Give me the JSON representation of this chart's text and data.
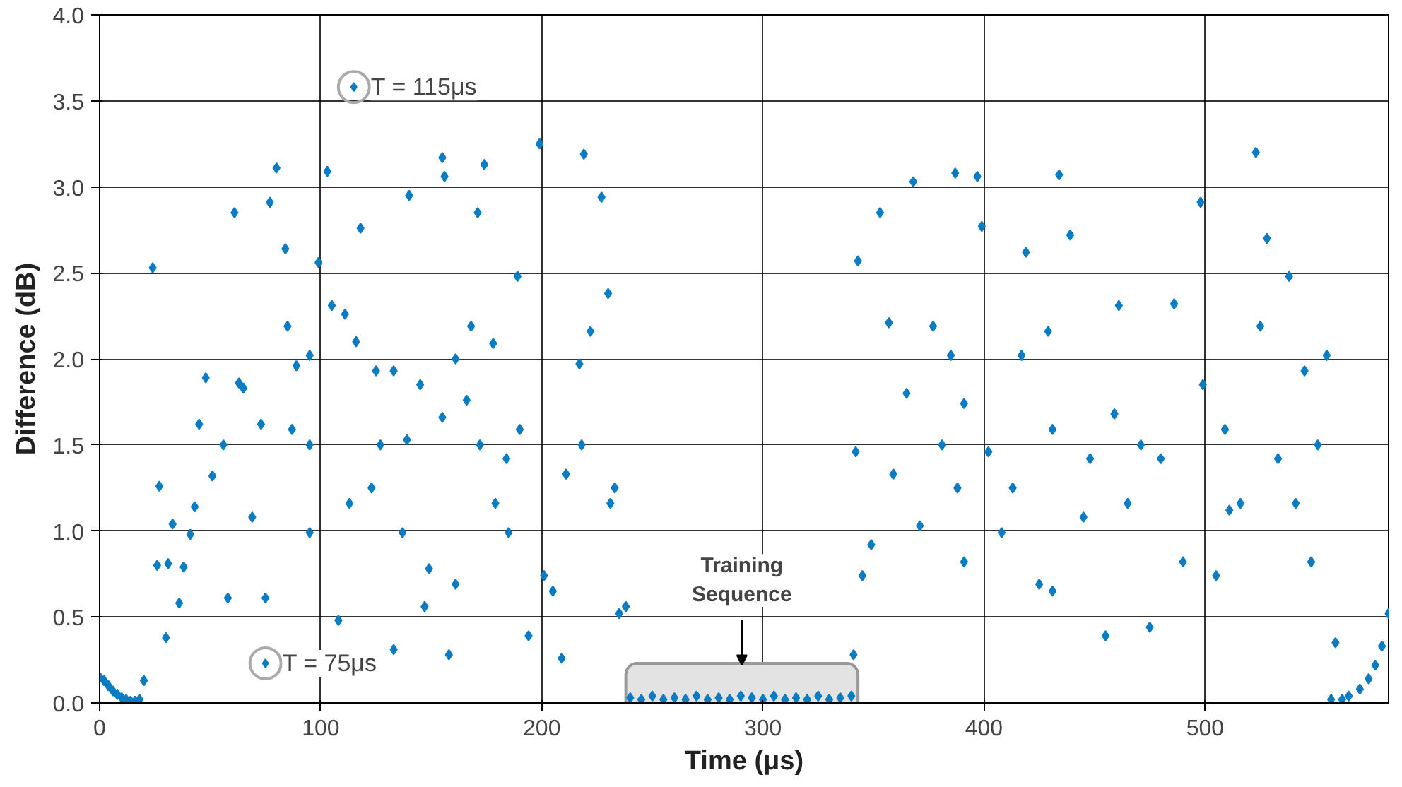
{
  "chart_data": {
    "type": "scatter",
    "xlabel": "Time (μs)",
    "ylabel": "Difference (dB)",
    "xlim": [
      0,
      583
    ],
    "ylim": [
      0,
      4
    ],
    "xticks": [
      0,
      100,
      200,
      300,
      400,
      500
    ],
    "yticks": [
      {
        "value": 0,
        "label": "0.0"
      },
      0.5,
      {
        "value": 1,
        "label": "1.0"
      },
      1.5,
      {
        "value": 2,
        "label": "2.0"
      },
      2.5,
      {
        "value": 3,
        "label": "3.0"
      },
      3.5,
      {
        "value": 4,
        "label": "4.0"
      }
    ],
    "grid": true,
    "marker": "diamond",
    "annotations": [
      {
        "text": "T = 115μs",
        "x": 115,
        "y": 3.58
      },
      {
        "text": "T = 75μs",
        "x": 75,
        "y": 0.23
      }
    ],
    "bands": [
      {
        "axis": "x",
        "from": 238,
        "to": 343,
        "label": "Training Sequence",
        "color": "#e3e3e3"
      }
    ],
    "series": [
      {
        "color": "#0a7cc4",
        "x": [
          0,
          2,
          4,
          6,
          8,
          10,
          12,
          14,
          16,
          18,
          20,
          24,
          26,
          27,
          30,
          31,
          33,
          36,
          38,
          41,
          43,
          45,
          48,
          51,
          56,
          58,
          61,
          63,
          65,
          69,
          73,
          75,
          77,
          80,
          84,
          85,
          87,
          89,
          95,
          95,
          95,
          99,
          103,
          105,
          108,
          111,
          113,
          116,
          118,
          123,
          125,
          127,
          133,
          133,
          137,
          139,
          140,
          145,
          147,
          149,
          155,
          155,
          156,
          158,
          161,
          161,
          166,
          168,
          171,
          172,
          174,
          178,
          179,
          184,
          185,
          189,
          190,
          194,
          199,
          201,
          205,
          209,
          211,
          217,
          218,
          219,
          222,
          227,
          230,
          231,
          233,
          235,
          238,
          240,
          245,
          250,
          255,
          260,
          265,
          270,
          275,
          280,
          285,
          290,
          295,
          300,
          305,
          310,
          315,
          320,
          325,
          330,
          335,
          340,
          341,
          342,
          343,
          345,
          349,
          353,
          357,
          359,
          365,
          368,
          371,
          377,
          381,
          385,
          387,
          388,
          391,
          391,
          397,
          399,
          402,
          408,
          413,
          417,
          419,
          425,
          429,
          431,
          431,
          434,
          439,
          445,
          448,
          455,
          459,
          461,
          465,
          471,
          475,
          480,
          486,
          490,
          498,
          499,
          505,
          509,
          511,
          516,
          523,
          525,
          528,
          533,
          538,
          541,
          545,
          548,
          551,
          555,
          559,
          557,
          562,
          565,
          570,
          574,
          577,
          580,
          583
        ],
        "values": [
          0.15,
          0.13,
          0.1,
          0.07,
          0.05,
          0.03,
          0.02,
          0.01,
          0.01,
          0.02,
          0.13,
          2.53,
          0.8,
          1.26,
          0.38,
          0.81,
          1.04,
          0.58,
          0.79,
          0.98,
          1.14,
          1.62,
          1.89,
          1.32,
          1.5,
          0.61,
          2.85,
          1.86,
          1.83,
          1.08,
          1.62,
          0.61,
          2.91,
          3.11,
          2.64,
          2.19,
          1.59,
          1.96,
          1.5,
          0.99,
          2.02,
          2.56,
          3.09,
          2.31,
          0.48,
          2.26,
          1.16,
          2.1,
          2.76,
          1.25,
          1.93,
          1.5,
          0.31,
          1.93,
          0.99,
          1.53,
          2.95,
          1.85,
          0.56,
          0.78,
          3.17,
          1.66,
          3.06,
          0.28,
          2.0,
          0.69,
          1.76,
          2.19,
          2.85,
          1.5,
          3.13,
          2.09,
          1.16,
          1.42,
          0.99,
          2.48,
          1.59,
          0.39,
          3.25,
          0.74,
          0.65,
          0.26,
          1.33,
          1.97,
          1.5,
          3.19,
          2.16,
          2.94,
          2.38,
          1.16,
          1.25,
          0.52,
          0.56,
          0.03,
          0.02,
          0.04,
          0.02,
          0.03,
          0.02,
          0.04,
          0.02,
          0.03,
          0.02,
          0.04,
          0.03,
          0.02,
          0.04,
          0.02,
          0.03,
          0.02,
          0.04,
          0.02,
          0.03,
          0.04,
          0.28,
          1.46,
          2.57,
          0.74,
          0.92,
          2.85,
          2.21,
          1.33,
          1.8,
          3.03,
          1.03,
          2.19,
          1.5,
          2.02,
          3.08,
          1.25,
          1.74,
          0.82,
          3.06,
          2.77,
          1.46,
          0.99,
          1.25,
          2.02,
          2.62,
          0.69,
          2.16,
          1.59,
          0.65,
          3.07,
          2.72,
          1.08,
          1.42,
          0.39,
          1.68,
          2.31,
          1.16,
          1.5,
          0.44,
          1.42,
          2.32,
          0.82,
          2.91,
          1.85,
          0.74,
          1.59,
          1.12,
          1.16,
          3.2,
          2.19,
          2.7,
          1.42,
          2.48,
          1.16,
          1.93,
          0.82,
          1.5,
          2.02,
          0.35,
          0.02,
          0.02,
          0.04,
          0.08,
          0.14,
          0.22,
          0.33,
          0.52
        ]
      }
    ]
  }
}
